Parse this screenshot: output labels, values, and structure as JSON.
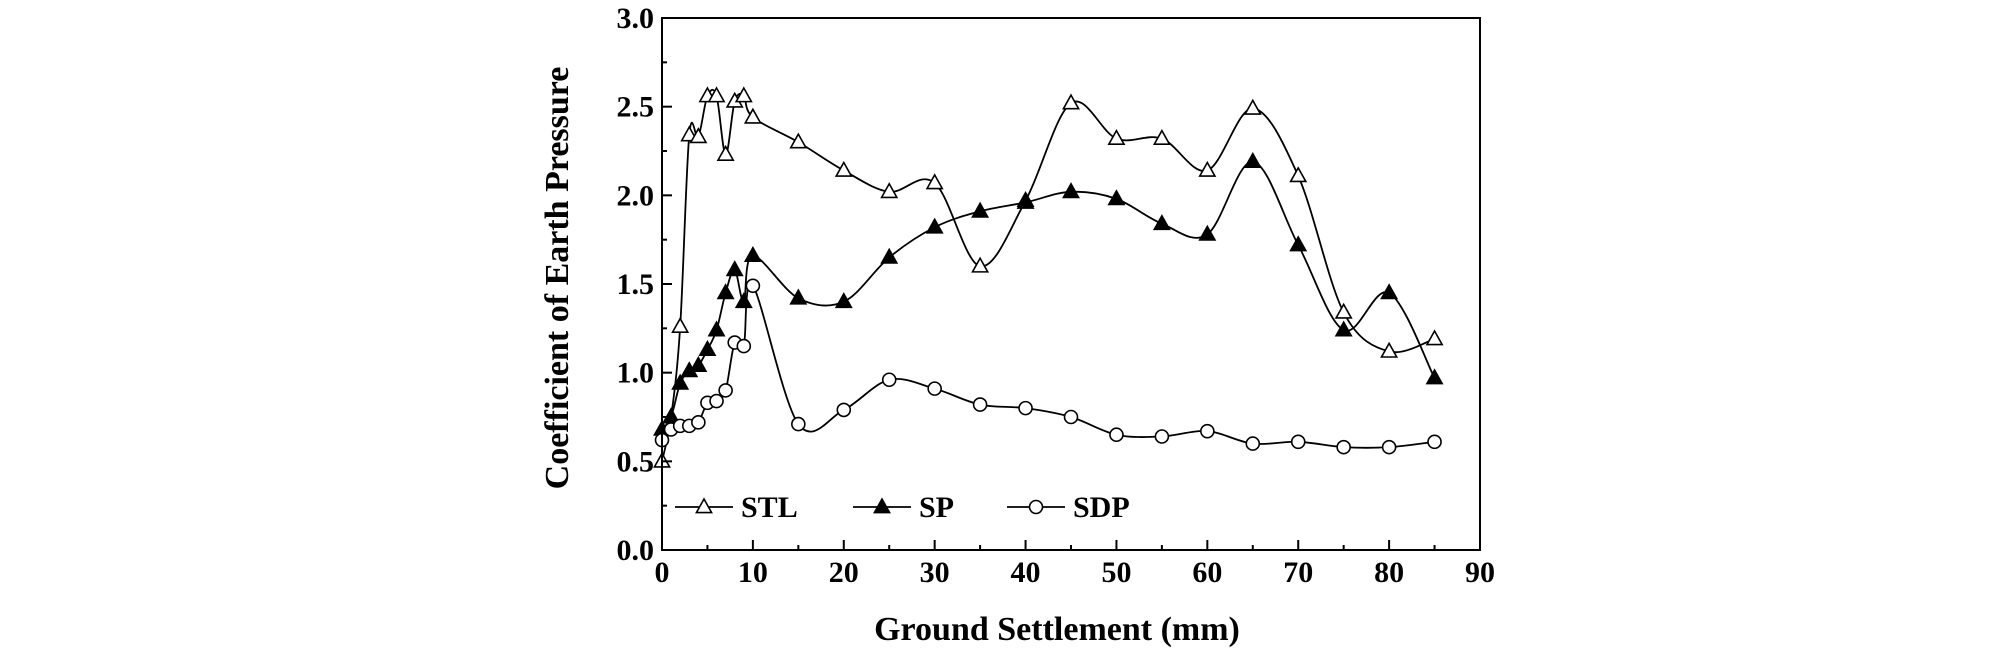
{
  "chart_data": {
    "type": "line",
    "title": "",
    "xlabel": "Ground Settlement (mm)",
    "ylabel": "Coefficient of Earth Pressure",
    "xlim": [
      0,
      90
    ],
    "ylim": [
      0,
      3.0
    ],
    "xticks": [
      0,
      10,
      20,
      30,
      40,
      50,
      60,
      70,
      80,
      90
    ],
    "xtick_labels": [
      "0",
      "10",
      "20",
      "30",
      "40",
      "50",
      "60",
      "70",
      "80",
      "90"
    ],
    "yticks": [
      0,
      0.5,
      1.0,
      1.5,
      2.0,
      2.5,
      3.0
    ],
    "ytick_labels": [
      "0.0",
      "0.5",
      "1.0",
      "1.5",
      "2.0",
      "2.5",
      "3.0"
    ],
    "grid": false,
    "legend_position": "bottom-left",
    "series": [
      {
        "name": "STL",
        "marker": "triangle-open",
        "x": [
          0,
          1,
          2,
          3,
          4,
          5,
          6,
          7,
          8,
          9,
          10,
          15,
          20,
          25,
          30,
          35,
          40,
          45,
          50,
          55,
          60,
          65,
          70,
          75,
          80,
          85
        ],
        "y": [
          0.5,
          0.75,
          1.26,
          2.34,
          2.33,
          2.56,
          2.56,
          2.23,
          2.53,
          2.56,
          2.44,
          2.3,
          2.14,
          2.02,
          2.07,
          1.6,
          1.97,
          2.52,
          2.32,
          2.32,
          2.14,
          2.49,
          2.11,
          1.34,
          1.12,
          1.19
        ]
      },
      {
        "name": "SP",
        "marker": "triangle-filled",
        "x": [
          0,
          1,
          2,
          3,
          4,
          5,
          6,
          7,
          8,
          9,
          10,
          15,
          20,
          25,
          30,
          35,
          40,
          45,
          50,
          55,
          60,
          65,
          70,
          75,
          80,
          85
        ],
        "y": [
          0.68,
          0.75,
          0.94,
          1.01,
          1.04,
          1.13,
          1.24,
          1.45,
          1.58,
          1.4,
          1.66,
          1.42,
          1.4,
          1.65,
          1.82,
          1.91,
          1.96,
          2.02,
          1.98,
          1.84,
          1.78,
          2.19,
          1.72,
          1.24,
          1.45,
          0.97
        ]
      },
      {
        "name": "SDP",
        "marker": "circle-open",
        "x": [
          0,
          1,
          2,
          3,
          4,
          5,
          6,
          7,
          8,
          9,
          10,
          15,
          20,
          25,
          30,
          35,
          40,
          45,
          50,
          55,
          60,
          65,
          70,
          75,
          80,
          85
        ],
        "y": [
          0.62,
          0.68,
          0.7,
          0.7,
          0.72,
          0.83,
          0.84,
          0.9,
          1.17,
          1.15,
          1.49,
          0.71,
          0.79,
          0.96,
          0.91,
          0.82,
          0.8,
          0.75,
          0.65,
          0.64,
          0.67,
          0.6,
          0.61,
          0.58,
          0.58,
          0.61
        ]
      }
    ]
  }
}
